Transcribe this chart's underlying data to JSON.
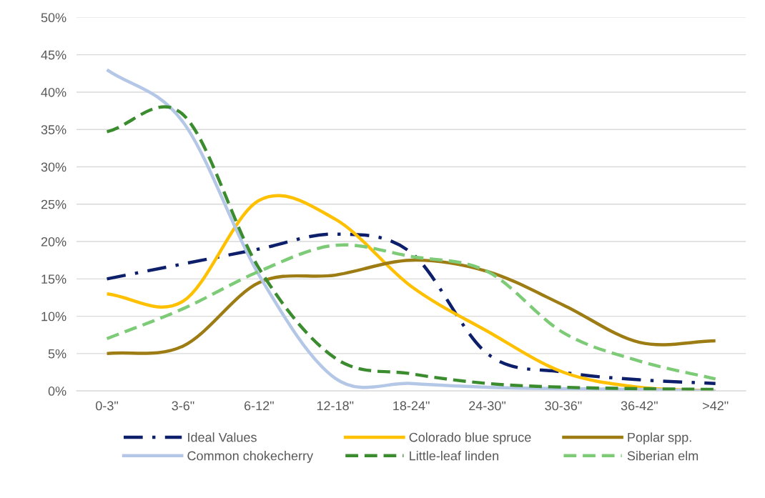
{
  "chart_data": {
    "type": "line",
    "categories": [
      "0-3\"",
      "3-6\"",
      "6-12\"",
      "12-18\"",
      "18-24\"",
      "24-30\"",
      "30-36\"",
      "36-42\"",
      ">42\""
    ],
    "series": [
      {
        "name": "Ideal Values",
        "color": "#0d1f6b",
        "line_style": "dashdot",
        "values": [
          15,
          17,
          19,
          21,
          18.5,
          5,
          2.5,
          1.5,
          1
        ]
      },
      {
        "name": "Colorado blue spruce",
        "color": "#ffc000",
        "line_style": "solid",
        "values": [
          13,
          12,
          25.5,
          23,
          14,
          8,
          2.5,
          0.5,
          0
        ]
      },
      {
        "name": "Poplar spp.",
        "color": "#9e7c14",
        "line_style": "solid",
        "values": [
          5,
          6,
          14.5,
          15.5,
          17.5,
          16,
          11.5,
          6.5,
          6.7
        ]
      },
      {
        "name": "Common chokecherry",
        "color": "#b4c7e7",
        "line_style": "solid",
        "values": [
          43,
          36,
          15.5,
          1.7,
          1,
          0.5,
          0.3,
          0.2,
          0
        ]
      },
      {
        "name": "Little-leaf linden",
        "color": "#3b8c2f",
        "line_style": "dashed",
        "values": [
          34.7,
          37,
          16.4,
          4.4,
          2.3,
          1,
          0.5,
          0.3,
          0.2
        ]
      },
      {
        "name": "Siberian elm",
        "color": "#7dcb76",
        "line_style": "dashed",
        "values": [
          7,
          11,
          16,
          19.5,
          18,
          16,
          7.8,
          4,
          1.6
        ]
      }
    ],
    "ylim": [
      0,
      50
    ],
    "yticks": [
      {
        "value": 0,
        "label": "0%"
      },
      {
        "value": 5,
        "label": "5%"
      },
      {
        "value": 10,
        "label": "10%"
      },
      {
        "value": 15,
        "label": "15%"
      },
      {
        "value": 20,
        "label": "20%"
      },
      {
        "value": 25,
        "label": "25%"
      },
      {
        "value": 30,
        "label": "30%"
      },
      {
        "value": 35,
        "label": "35%"
      },
      {
        "value": 40,
        "label": "40%"
      },
      {
        "value": 45,
        "label": "45%"
      },
      {
        "value": 50,
        "label": "50%"
      }
    ],
    "grid": "y",
    "legend": "bottom",
    "marker": "none"
  }
}
